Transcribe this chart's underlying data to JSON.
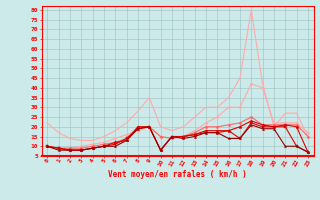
{
  "x": [
    0,
    1,
    2,
    3,
    4,
    5,
    6,
    7,
    8,
    9,
    10,
    11,
    12,
    13,
    14,
    15,
    16,
    17,
    18,
    19,
    20,
    21,
    22,
    23
  ],
  "series": [
    {
      "color": "#ffaaaa",
      "lw": 0.8,
      "marker": null,
      "y": [
        22,
        17,
        14,
        13,
        13,
        15,
        18,
        22,
        28,
        35,
        20,
        18,
        20,
        25,
        30,
        30,
        35,
        45,
        80,
        42,
        20,
        27,
        27,
        15
      ]
    },
    {
      "color": "#ffaaaa",
      "lw": 0.8,
      "marker": "D",
      "ms": 1.5,
      "y": [
        10,
        9,
        9,
        10,
        11,
        12,
        14,
        16,
        18,
        20,
        15,
        14,
        15,
        18,
        22,
        25,
        30,
        30,
        42,
        40,
        22,
        22,
        22,
        17
      ]
    },
    {
      "color": "#ff6666",
      "lw": 0.8,
      "marker": "D",
      "ms": 1.5,
      "y": [
        10,
        9,
        9,
        9,
        10,
        11,
        12,
        14,
        20,
        20,
        15,
        14,
        15,
        17,
        20,
        20,
        21,
        22,
        25,
        21,
        21,
        21,
        21,
        15
      ]
    },
    {
      "color": "#dd0000",
      "lw": 0.8,
      "marker": "*",
      "ms": 2.5,
      "y": [
        10,
        9,
        8,
        8,
        9,
        10,
        12,
        13,
        20,
        20,
        8,
        15,
        15,
        16,
        18,
        18,
        18,
        20,
        23,
        21,
        20,
        21,
        20,
        7
      ]
    },
    {
      "color": "#dd0000",
      "lw": 0.8,
      "marker": "s",
      "ms": 1.5,
      "y": [
        10,
        9,
        8,
        8,
        9,
        10,
        11,
        14,
        19,
        20,
        8,
        15,
        15,
        16,
        17,
        17,
        18,
        14,
        22,
        20,
        20,
        20,
        10,
        7
      ]
    },
    {
      "color": "#990000",
      "lw": 0.8,
      "marker": "^",
      "ms": 1.5,
      "y": [
        10,
        8,
        8,
        8,
        9,
        10,
        10,
        13,
        19,
        20,
        8,
        15,
        14,
        15,
        17,
        17,
        14,
        14,
        21,
        19,
        19,
        10,
        10,
        7
      ]
    }
  ],
  "xlim": [
    -0.5,
    23.5
  ],
  "ylim": [
    5,
    82
  ],
  "yticks": [
    5,
    10,
    15,
    20,
    25,
    30,
    35,
    40,
    45,
    50,
    55,
    60,
    65,
    70,
    75,
    80
  ],
  "xticks": [
    0,
    1,
    2,
    3,
    4,
    5,
    6,
    7,
    8,
    9,
    10,
    11,
    12,
    13,
    14,
    15,
    16,
    17,
    18,
    19,
    20,
    21,
    22,
    23
  ],
  "xlabel": "Vent moyen/en rafales ( km/h )",
  "bg_color": "#cceaea",
  "grid_color": "#9bbfbf",
  "axis_color": "#ff0000",
  "label_color": "#ff0000",
  "tick_label_color": "#ff0000"
}
